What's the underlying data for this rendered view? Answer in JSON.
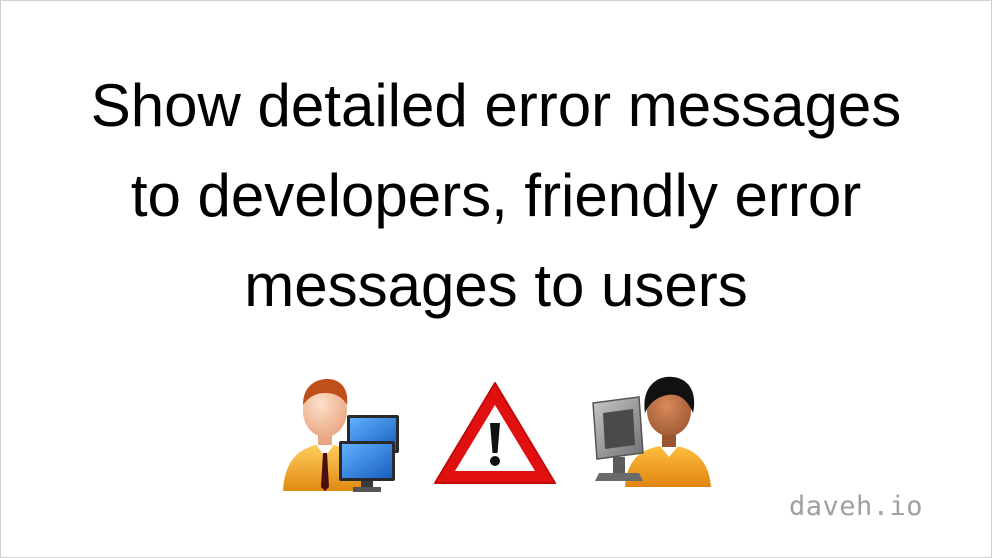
{
  "slide": {
    "title_lines": [
      "Show detailed error messages",
      "to developers, friendly error",
      "messages to users"
    ],
    "watermark": "daveh.io"
  },
  "icons": {
    "developer": "developer-with-computers-icon",
    "warning": "warning-triangle-icon",
    "user": "user-at-computer-icon"
  },
  "colors": {
    "text": "#000000",
    "warning_red": "#e01010",
    "watermark": "#a0a0a0",
    "shirt_orange": "#f0a020",
    "monitor_blue": "#1e6fd0",
    "monitor_gray": "#8a8a8a"
  }
}
